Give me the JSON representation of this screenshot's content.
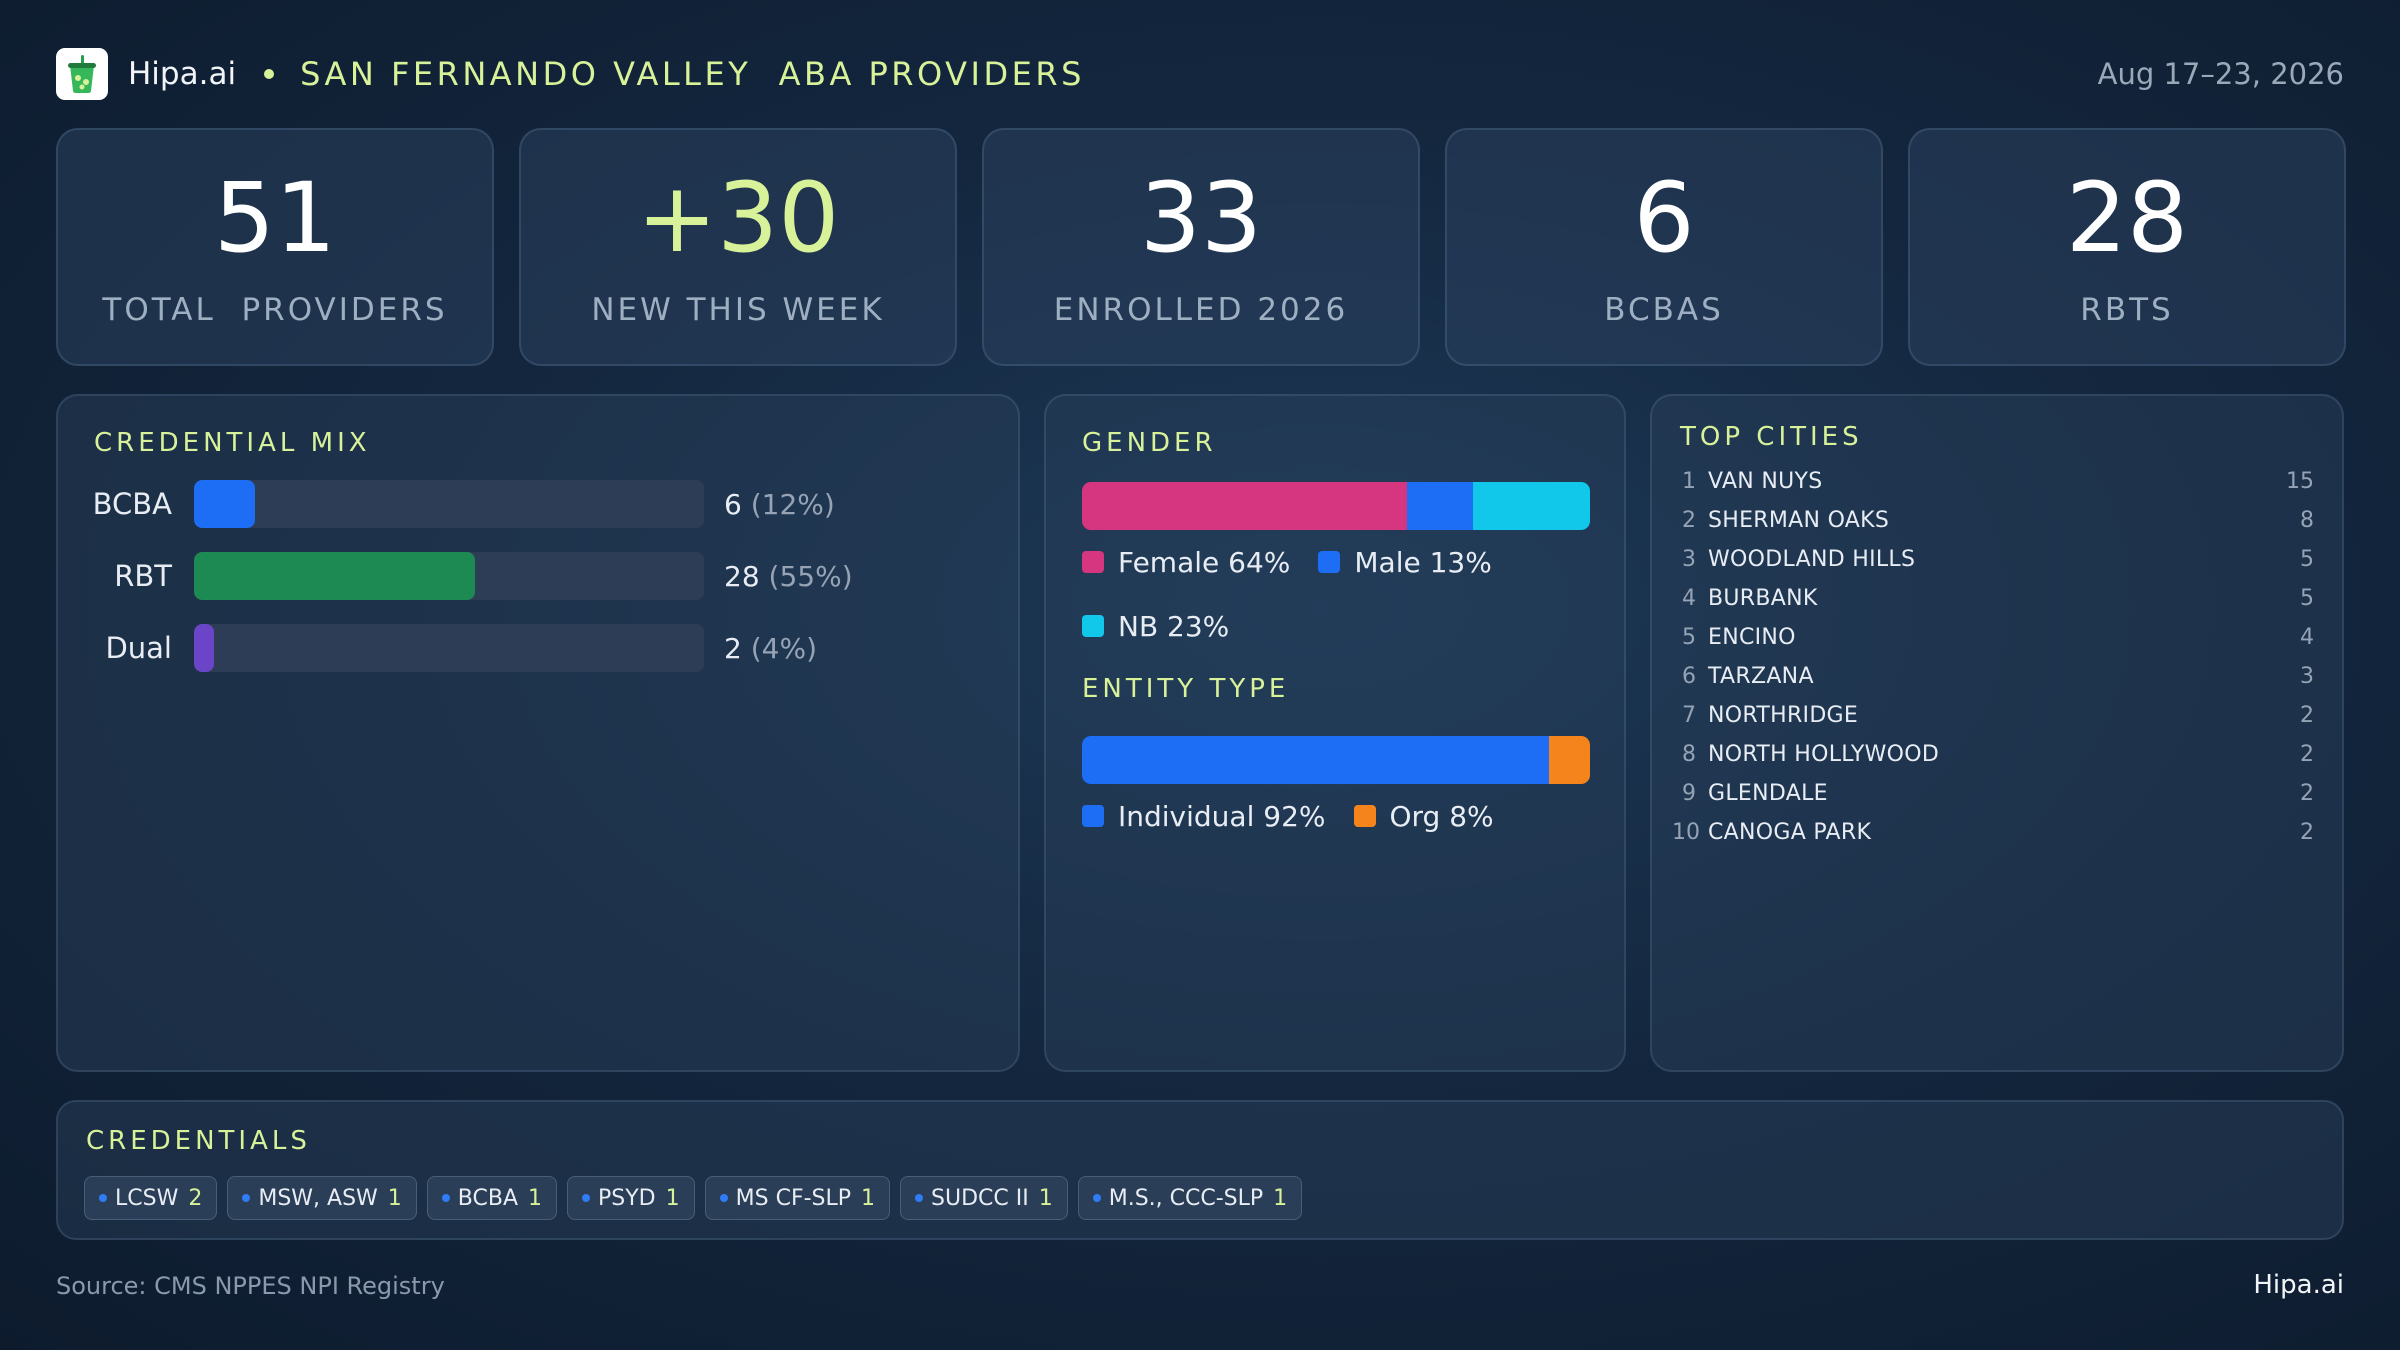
{
  "header": {
    "brand": "Hipa.ai",
    "title": "SAN FERNANDO VALLEY  ABA PROVIDERS",
    "date_range": "Aug 17–23, 2026",
    "logo_icon": "cup-icon"
  },
  "kpis": [
    {
      "value": "51",
      "label": "TOTAL  PROVIDERS"
    },
    {
      "value": "+30",
      "label": "NEW THIS WEEK"
    },
    {
      "value": "33",
      "label": "ENROLLED 2026"
    },
    {
      "value": "6",
      "label": "BCBAS"
    },
    {
      "value": "28",
      "label": "RBTS"
    }
  ],
  "chart_data": [
    {
      "type": "bar",
      "title": "CREDENTIAL MIX",
      "categories": [
        "BCBA",
        "RBT",
        "Dual"
      ],
      "values": [
        6,
        28,
        2
      ],
      "value_labels": [
        "6",
        "28",
        "2"
      ],
      "pct_labels": [
        "(12%)",
        "(55%)",
        "(4%)"
      ],
      "percent": [
        12,
        55,
        4
      ],
      "colors": [
        "#1e6ef5",
        "#1c8a52",
        "#6a45c8"
      ]
    },
    {
      "type": "bar",
      "title": "GENDER",
      "segments": [
        {
          "label": "Female 64%",
          "value": 64,
          "color": "#d6357f"
        },
        {
          "label": "Male 13%",
          "value": 13,
          "color": "#1e6ef5"
        },
        {
          "label": "NB 23%",
          "value": 23,
          "color": "#12c8ea"
        }
      ]
    },
    {
      "type": "bar",
      "title": "ENTITY TYPE",
      "segments": [
        {
          "label": "Individual 92%",
          "value": 92,
          "color": "#1e6ef5"
        },
        {
          "label": "Org 8%",
          "value": 8,
          "color": "#f5841c"
        }
      ]
    },
    {
      "type": "table",
      "title": "TOP CITIES",
      "rows": [
        {
          "rank": "1",
          "city": "VAN NUYS",
          "count": "15"
        },
        {
          "rank": "2",
          "city": "SHERMAN OAKS",
          "count": "8"
        },
        {
          "rank": "3",
          "city": "WOODLAND HILLS",
          "count": "5"
        },
        {
          "rank": "4",
          "city": "BURBANK",
          "count": "5"
        },
        {
          "rank": "5",
          "city": "ENCINO",
          "count": "4"
        },
        {
          "rank": "6",
          "city": "TARZANA",
          "count": "3"
        },
        {
          "rank": "7",
          "city": "NORTHRIDGE",
          "count": "2"
        },
        {
          "rank": "8",
          "city": "NORTH HOLLYWOOD",
          "count": "2"
        },
        {
          "rank": "9",
          "city": "GLENDALE",
          "count": "2"
        },
        {
          "rank": "10",
          "city": "CANOGA PARK",
          "count": "2"
        }
      ]
    }
  ],
  "credentials": {
    "title": "CREDENTIALS",
    "chips": [
      {
        "name": "LCSW",
        "count": "2"
      },
      {
        "name": "MSW, ASW",
        "count": "1"
      },
      {
        "name": "BCBA",
        "count": "1"
      },
      {
        "name": "PSYD",
        "count": "1"
      },
      {
        "name": "MS CF-SLP",
        "count": "1"
      },
      {
        "name": "SUDCC II",
        "count": "1"
      },
      {
        "name": "M.S., CCC-SLP",
        "count": "1"
      }
    ]
  },
  "footer": {
    "source": "Source: CMS NPPES NPI Registry",
    "brand": "Hipa.ai"
  }
}
